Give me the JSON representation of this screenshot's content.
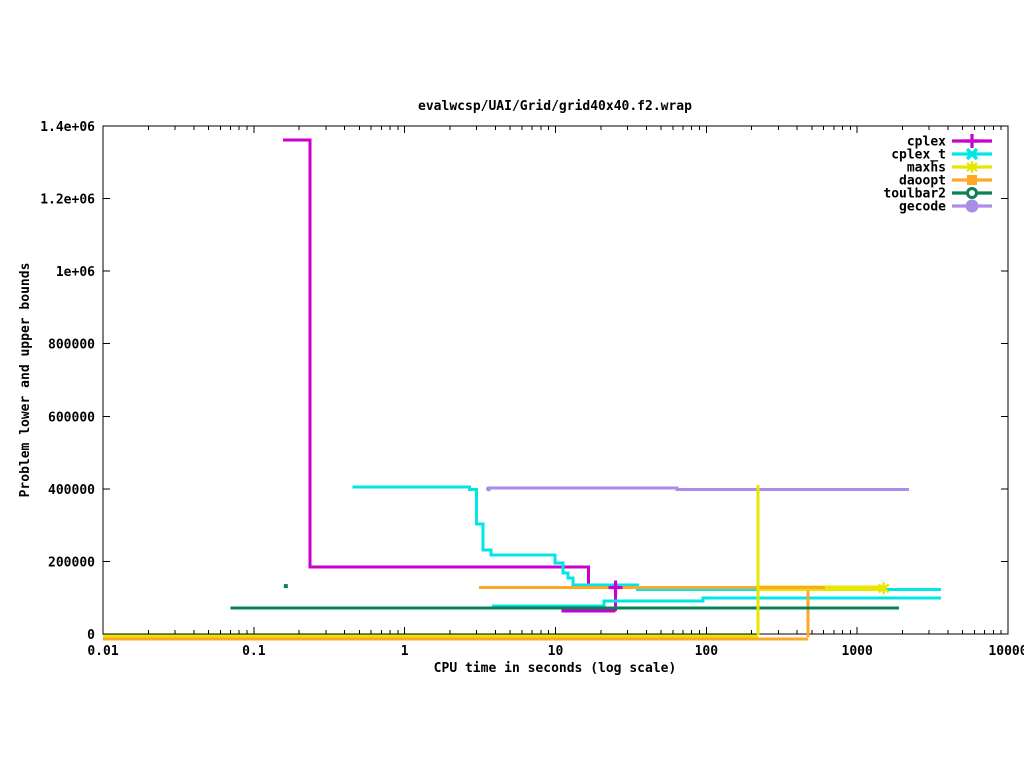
{
  "chart_data": {
    "type": "line",
    "title": "evalwcsp/UAI/Grid/grid40x40.f2.wrap",
    "xlabel": "CPU time in seconds (log scale)",
    "ylabel": "Problem lower and upper bounds",
    "x_scale": "log",
    "xlim": [
      0.01,
      10000
    ],
    "ylim": [
      0,
      1400000
    ],
    "grid": false,
    "legend_position": "top-right-inside",
    "x_ticks": [
      {
        "v": 0.01,
        "label": "0.01"
      },
      {
        "v": 0.1,
        "label": "0.1"
      },
      {
        "v": 1,
        "label": "1"
      },
      {
        "v": 10,
        "label": "10"
      },
      {
        "v": 100,
        "label": "100"
      },
      {
        "v": 1000,
        "label": "1000"
      },
      {
        "v": 10000,
        "label": "10000"
      }
    ],
    "y_ticks": [
      {
        "v": 0,
        "label": "0"
      },
      {
        "v": 200000,
        "label": "200000"
      },
      {
        "v": 400000,
        "label": "400000"
      },
      {
        "v": 600000,
        "label": "600000"
      },
      {
        "v": 800000,
        "label": "800000"
      },
      {
        "v": 1000000,
        "label": "1e+06"
      },
      {
        "v": 1200000,
        "label": "1.2e+06"
      },
      {
        "v": 1400000,
        "label": "1.4e+06"
      }
    ],
    "series": [
      {
        "name": "cplex",
        "color": "#cc00cc",
        "legend_marker": "plus",
        "segments": [
          {
            "pts": [
              [
                0.156,
                1362000
              ],
              [
                0.236,
                1362000
              ],
              [
                0.236,
                185000
              ],
              [
                16.5,
                185000
              ],
              [
                16.5,
                128000
              ],
              [
                25,
                128000
              ],
              [
                25,
                63000
              ]
            ]
          },
          {
            "pts": [
              [
                11,
                63000
              ],
              [
                25,
                63000
              ]
            ]
          }
        ],
        "plot_markers": [
          {
            "type": "plus",
            "at": [
              25,
              128000
            ]
          }
        ]
      },
      {
        "name": "cplex_t",
        "color": "#00e5e5",
        "legend_marker": "x",
        "segments": [
          {
            "pts": [
              [
                0.45,
                405000
              ],
              [
                2.7,
                405000
              ],
              [
                2.7,
                398000
              ],
              [
                3.0,
                398000
              ],
              [
                3.0,
                303000
              ],
              [
                3.3,
                303000
              ],
              [
                3.3,
                231000
              ],
              [
                3.75,
                231000
              ],
              [
                3.75,
                218000
              ],
              [
                9.9,
                218000
              ],
              [
                9.9,
                196000
              ],
              [
                11.2,
                196000
              ],
              [
                11.2,
                168000
              ],
              [
                12.1,
                168000
              ],
              [
                12.1,
                154000
              ],
              [
                13.1,
                154000
              ],
              [
                13.1,
                135000
              ],
              [
                35,
                135000
              ],
              [
                35,
                122000
              ],
              [
                3600,
                122000
              ]
            ]
          },
          {
            "pts": [
              [
                3.8,
                77000
              ],
              [
                21,
                77000
              ],
              [
                21,
                91000
              ],
              [
                95,
                91000
              ],
              [
                95,
                99000
              ],
              [
                3600,
                99000
              ]
            ]
          }
        ],
        "plot_markers": []
      },
      {
        "name": "maxhs",
        "color": "#e6e600",
        "legend_marker": "asterisk",
        "segments": [
          {
            "pts": [
              [
                0.01,
                0
              ],
              [
                220,
                0
              ]
            ],
            "dy": 2
          },
          {
            "pts": [
              [
                220,
                0
              ],
              [
                220,
                413000
              ]
            ],
            "dy": 1,
            "z": "top"
          },
          {
            "pts": [
              [
                220,
                129000
              ],
              [
                1500,
                129000
              ]
            ]
          },
          {
            "pts": [
              [
                220,
                123000
              ],
              [
                1500,
                123000
              ]
            ]
          }
        ],
        "plot_markers": [
          {
            "type": "asterisk",
            "at": [
              1500,
              126000
            ]
          }
        ]
      },
      {
        "name": "daoopt",
        "color": "#ffa826",
        "legend_marker": "square",
        "segments": [
          {
            "pts": [
              [
                0.01,
                0
              ],
              [
                472,
                0
              ]
            ],
            "dy": 5
          },
          {
            "pts": [
              [
                472,
                0
              ],
              [
                472,
                128000
              ]
            ],
            "dy": 3
          },
          {
            "pts": [
              [
                3.1,
                128000
              ],
              [
                610,
                128000
              ]
            ]
          }
        ],
        "plot_markers": []
      },
      {
        "name": "toulbar2",
        "color": "#0b7f55",
        "legend_marker": "circle-open",
        "segments": [
          {
            "pts": [
              [
                0.07,
                72000
              ],
              [
                1900,
                72000
              ]
            ]
          }
        ],
        "plot_markers": [
          {
            "type": "dot-square",
            "at": [
              0.163,
              132000
            ]
          }
        ]
      },
      {
        "name": "gecode",
        "color": "#a98de8",
        "legend_marker": "circle",
        "segments": [
          {
            "pts": [
              [
                3.6,
                403000
              ],
              [
                64,
                403000
              ],
              [
                64,
                398000
              ],
              [
                2200,
                398000
              ]
            ]
          }
        ],
        "plot_markers": [
          {
            "type": "dot",
            "at": [
              3.6,
              400000
            ]
          }
        ]
      }
    ]
  }
}
